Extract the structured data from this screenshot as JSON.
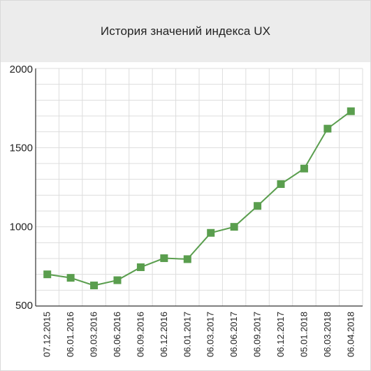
{
  "title": "История значений индекса UX",
  "colors": {
    "header_bg": "#ececec",
    "line": "#5a9e4e",
    "marker": "#5a9e4e",
    "grid": "#dddddd",
    "axis": "#333333"
  },
  "chart_data": {
    "type": "line",
    "title": "История значений индекса UX",
    "xlabel": "",
    "ylabel": "",
    "ylim": [
      500,
      2000
    ],
    "yticks": [
      500,
      1000,
      1500,
      2000
    ],
    "grid": true,
    "legend": "none",
    "categories": [
      "07.12.2015",
      "06.01.2016",
      "09.03.2016",
      "06.06.2016",
      "06.09.2016",
      "06.12.2016",
      "06.01.2017",
      "06.03.2017",
      "06.06.2017",
      "06.09.2017",
      "06.12.2017",
      "05.01.2018",
      "06.03.2018",
      "06.04.2018"
    ],
    "series": [
      {
        "values": [
          700,
          678,
          630,
          663,
          745,
          802,
          796,
          962,
          1000,
          1132,
          1270,
          1368,
          1620,
          1730
        ]
      }
    ]
  }
}
